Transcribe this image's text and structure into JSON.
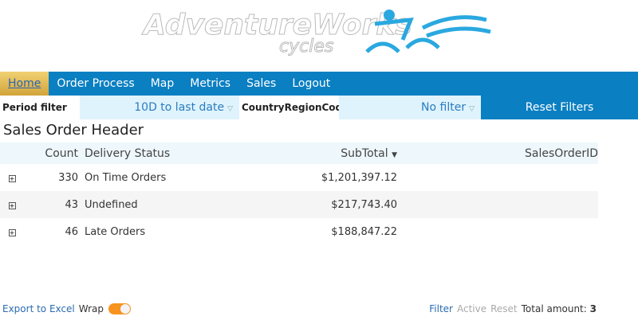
{
  "logo": {
    "text": "AdventureWorks",
    "sub": "cycles"
  },
  "nav": [
    "Home",
    "Order Process",
    "Map",
    "Metrics",
    "Sales",
    "Logout"
  ],
  "filters": {
    "period_label": "Period filter",
    "period_value": "10D to last date",
    "country_label": "CountryRegionCode",
    "country_value": "No filter",
    "reset": "Reset Filters"
  },
  "title": "Sales Order Header",
  "columns": [
    "Count",
    "Delivery Status",
    "SubTotal",
    "SalesOrderID"
  ],
  "rows": [
    {
      "count": "330",
      "status": "On Time Orders",
      "subtotal": "$1,201,397.12"
    },
    {
      "count": "43",
      "status": "Undefined",
      "subtotal": "$217,743.40"
    },
    {
      "count": "46",
      "status": "Late Orders",
      "subtotal": "$188,847.22"
    }
  ],
  "footer": {
    "export": "Export to Excel",
    "wrap": "Wrap",
    "wrap_on": true,
    "filter": "Filter",
    "active": "Active",
    "reset": "Reset",
    "total_label": "Total amount:",
    "total": "3"
  },
  "colors": {
    "nav": "#0a7fc2",
    "toggle": "#f7931e"
  }
}
